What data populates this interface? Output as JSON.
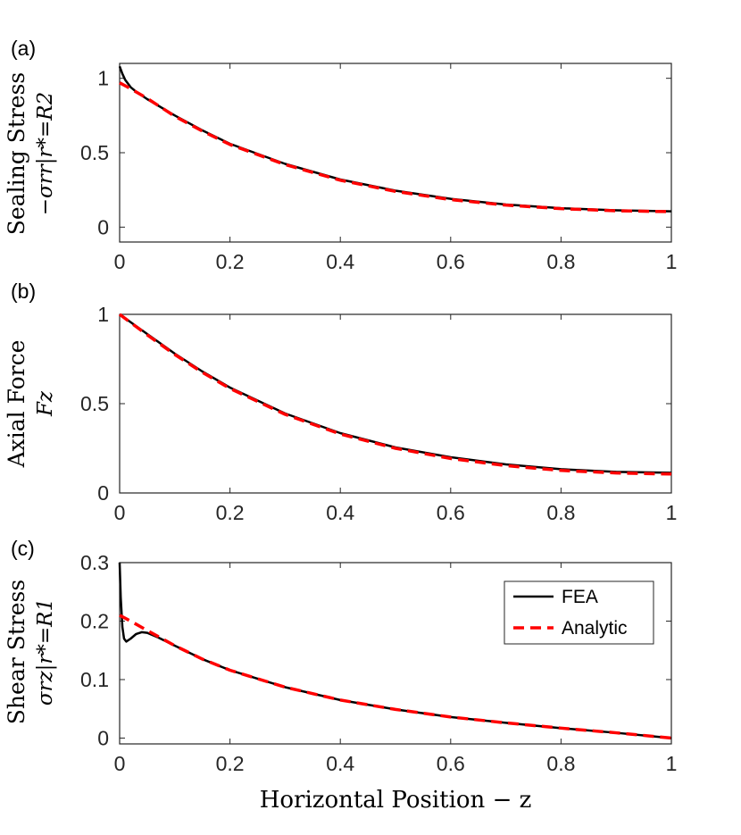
{
  "figure": {
    "xlabel": "Horizontal Position − z"
  },
  "legend": {
    "entries": [
      {
        "label": "FEA",
        "color": "#000000",
        "style": "solid"
      },
      {
        "label": "Analytic",
        "color": "#ff0000",
        "style": "dashed"
      }
    ]
  },
  "chart_data": [
    {
      "type": "line",
      "panel_label": "(a)",
      "ylabel_title": "Sealing Stress",
      "ylabel_math": "−σrr|r*=R2",
      "xlim": [
        0,
        1
      ],
      "ylim": [
        -0.1,
        1.1
      ],
      "xticks": [
        0,
        0.2,
        0.4,
        0.6,
        0.8,
        1
      ],
      "xtick_labels": [
        "0",
        "0.2",
        "0.4",
        "0.6",
        "0.8",
        "1"
      ],
      "yticks": [
        0,
        0.5,
        1
      ],
      "ytick_labels": [
        "0",
        "0.5",
        "1"
      ],
      "series": [
        {
          "name": "FEA",
          "color": "#000000",
          "dash": false,
          "x": [
            0,
            0.005,
            0.01,
            0.02,
            0.03,
            0.05,
            0.1,
            0.15,
            0.2,
            0.3,
            0.4,
            0.5,
            0.6,
            0.7,
            0.8,
            0.9,
            1.0
          ],
          "y": [
            1.08,
            1.03,
            0.99,
            0.94,
            0.91,
            0.86,
            0.75,
            0.65,
            0.56,
            0.425,
            0.32,
            0.245,
            0.19,
            0.152,
            0.127,
            0.113,
            0.106
          ]
        },
        {
          "name": "Analytic",
          "color": "#ff0000",
          "dash": true,
          "x": [
            0,
            0.02,
            0.05,
            0.1,
            0.15,
            0.2,
            0.3,
            0.4,
            0.5,
            0.6,
            0.7,
            0.8,
            0.9,
            1.0
          ],
          "y": [
            0.97,
            0.93,
            0.865,
            0.745,
            0.645,
            0.555,
            0.42,
            0.315,
            0.24,
            0.185,
            0.148,
            0.124,
            0.11,
            0.104
          ]
        }
      ]
    },
    {
      "type": "line",
      "panel_label": "(b)",
      "ylabel_title": "Axial Force",
      "ylabel_math": "Fz",
      "xlim": [
        0,
        1
      ],
      "ylim": [
        0,
        1
      ],
      "xticks": [
        0,
        0.2,
        0.4,
        0.6,
        0.8,
        1
      ],
      "xtick_labels": [
        "0",
        "0.2",
        "0.4",
        "0.6",
        "0.8",
        "1"
      ],
      "yticks": [
        0,
        0.5,
        1
      ],
      "ytick_labels": [
        "0",
        "0.5",
        "1"
      ],
      "series": [
        {
          "name": "FEA",
          "color": "#000000",
          "dash": false,
          "x": [
            0,
            0.05,
            0.1,
            0.15,
            0.2,
            0.3,
            0.4,
            0.5,
            0.6,
            0.7,
            0.8,
            0.9,
            1.0
          ],
          "y": [
            1.0,
            0.89,
            0.78,
            0.68,
            0.59,
            0.445,
            0.335,
            0.255,
            0.2,
            0.16,
            0.133,
            0.118,
            0.113
          ]
        },
        {
          "name": "Analytic",
          "color": "#ff0000",
          "dash": true,
          "x": [
            0,
            0.05,
            0.1,
            0.15,
            0.2,
            0.3,
            0.4,
            0.5,
            0.6,
            0.7,
            0.8,
            0.9,
            1.0
          ],
          "y": [
            1.0,
            0.885,
            0.775,
            0.675,
            0.585,
            0.44,
            0.33,
            0.25,
            0.193,
            0.153,
            0.126,
            0.112,
            0.106
          ]
        }
      ]
    },
    {
      "type": "line",
      "panel_label": "(c)",
      "ylabel_title": "Shear Stress",
      "ylabel_math": "σrz|r*=R1",
      "xlim": [
        0,
        1
      ],
      "ylim": [
        -0.01,
        0.3
      ],
      "xticks": [
        0,
        0.2,
        0.4,
        0.6,
        0.8,
        1
      ],
      "xtick_labels": [
        "0",
        "0.2",
        "0.4",
        "0.6",
        "0.8",
        "1"
      ],
      "yticks": [
        0,
        0.1,
        0.2,
        0.3
      ],
      "ytick_labels": [
        "0",
        "0.1",
        "0.2",
        "0.3"
      ],
      "series": [
        {
          "name": "FEA",
          "color": "#000000",
          "dash": false,
          "x": [
            0,
            0.002,
            0.005,
            0.008,
            0.012,
            0.02,
            0.03,
            0.04,
            0.05,
            0.07,
            0.1,
            0.15,
            0.2,
            0.3,
            0.4,
            0.5,
            0.6,
            0.7,
            0.8,
            0.9,
            1.0
          ],
          "y": [
            0.3,
            0.24,
            0.19,
            0.17,
            0.165,
            0.17,
            0.178,
            0.181,
            0.18,
            0.172,
            0.158,
            0.135,
            0.116,
            0.087,
            0.065,
            0.049,
            0.036,
            0.026,
            0.017,
            0.009,
            0.0
          ]
        },
        {
          "name": "Analytic",
          "color": "#ff0000",
          "dash": true,
          "x": [
            0,
            0.02,
            0.05,
            0.1,
            0.15,
            0.2,
            0.3,
            0.4,
            0.5,
            0.6,
            0.7,
            0.8,
            0.9,
            1.0
          ],
          "y": [
            0.21,
            0.2,
            0.184,
            0.158,
            0.135,
            0.116,
            0.087,
            0.065,
            0.049,
            0.036,
            0.026,
            0.017,
            0.009,
            0.0
          ]
        }
      ]
    }
  ]
}
